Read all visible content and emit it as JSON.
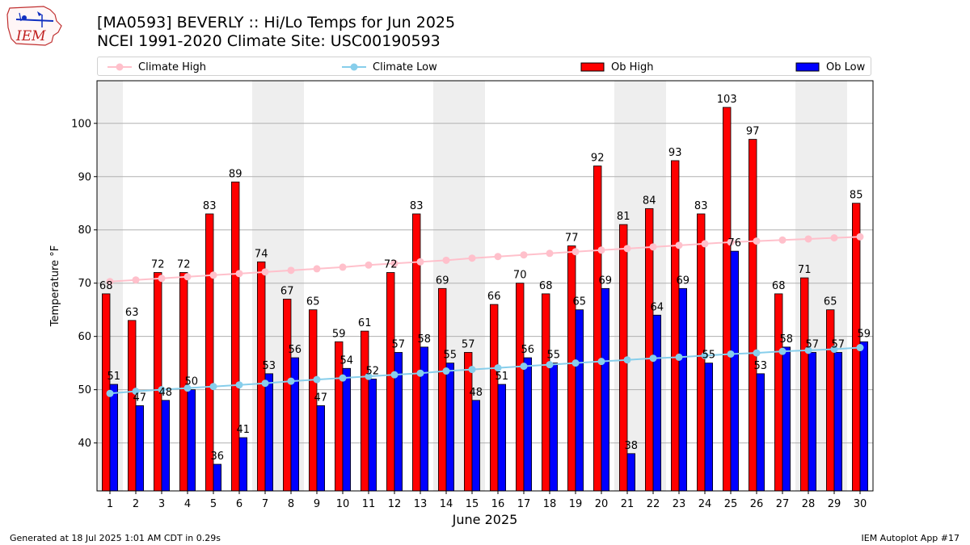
{
  "header": {
    "title_line1": "[MA0593] BEVERLY :: Hi/Lo Temps for Jun 2025",
    "title_line2": "NCEI 1991-2020 Climate Site: USC00190593",
    "logo_text": "IEM"
  },
  "footer": {
    "generated": "Generated at 18 Jul 2025 1:01 AM CDT in 0.29s",
    "app": "IEM Autoplot App #17"
  },
  "colors": {
    "ob_high": "#ff0000",
    "ob_low": "#0000ff",
    "climate_high": "#ffc0cb",
    "climate_low": "#87ceeb",
    "weekend_shade": "#eeeeee",
    "grid": "#b0b0b0"
  },
  "legend": {
    "position": "top (above plot, horizontal)",
    "items": [
      {
        "label": "Climate High",
        "kind": "line-marker",
        "color": "#ffc0cb"
      },
      {
        "label": "Climate Low",
        "kind": "line-marker",
        "color": "#87ceeb"
      },
      {
        "label": "Ob High",
        "kind": "bar",
        "color": "#ff0000"
      },
      {
        "label": "Ob Low",
        "kind": "bar",
        "color": "#0000ff"
      }
    ]
  },
  "chart_data": {
    "type": "bar",
    "xlabel": "June 2025",
    "ylabel": "Temperature °F",
    "ylim": [
      31,
      108
    ],
    "yticks": [
      40,
      50,
      60,
      70,
      80,
      90,
      100
    ],
    "grid": "horizontal",
    "categories": [
      "1",
      "2",
      "3",
      "4",
      "5",
      "6",
      "7",
      "8",
      "9",
      "10",
      "11",
      "12",
      "13",
      "14",
      "15",
      "16",
      "17",
      "18",
      "19",
      "20",
      "21",
      "22",
      "23",
      "24",
      "25",
      "26",
      "27",
      "28",
      "29",
      "30"
    ],
    "shaded_days": [
      1,
      7,
      8,
      14,
      15,
      21,
      22,
      28,
      29
    ],
    "series": [
      {
        "name": "Ob High",
        "kind": "bar",
        "values": [
          68,
          63,
          72,
          72,
          83,
          89,
          74,
          67,
          65,
          59,
          61,
          72,
          83,
          69,
          57,
          66,
          70,
          68,
          77,
          92,
          81,
          84,
          93,
          83,
          103,
          97,
          68,
          71,
          65,
          85
        ]
      },
      {
        "name": "Ob Low",
        "kind": "bar",
        "values": [
          51,
          47,
          48,
          50,
          36,
          41,
          53,
          56,
          47,
          54,
          52,
          57,
          58,
          55,
          48,
          51,
          56,
          55,
          65,
          69,
          38,
          64,
          69,
          55,
          76,
          53,
          58,
          57,
          57,
          59
        ]
      },
      {
        "name": "Climate High",
        "kind": "line",
        "values": [
          70.3,
          70.6,
          70.9,
          71.2,
          71.5,
          71.8,
          72.1,
          72.4,
          72.7,
          73.0,
          73.4,
          73.7,
          74.0,
          74.3,
          74.7,
          75.0,
          75.3,
          75.6,
          75.9,
          76.2,
          76.5,
          76.8,
          77.1,
          77.4,
          77.7,
          77.9,
          78.1,
          78.3,
          78.5,
          78.7
        ]
      },
      {
        "name": "Climate Low",
        "kind": "line",
        "values": [
          49.3,
          49.7,
          50.0,
          50.3,
          50.6,
          50.9,
          51.2,
          51.6,
          51.9,
          52.2,
          52.5,
          52.8,
          53.1,
          53.5,
          53.8,
          54.1,
          54.4,
          54.7,
          55.0,
          55.3,
          55.6,
          55.9,
          56.1,
          56.4,
          56.7,
          56.9,
          57.2,
          57.4,
          57.6,
          57.9
        ]
      }
    ]
  }
}
